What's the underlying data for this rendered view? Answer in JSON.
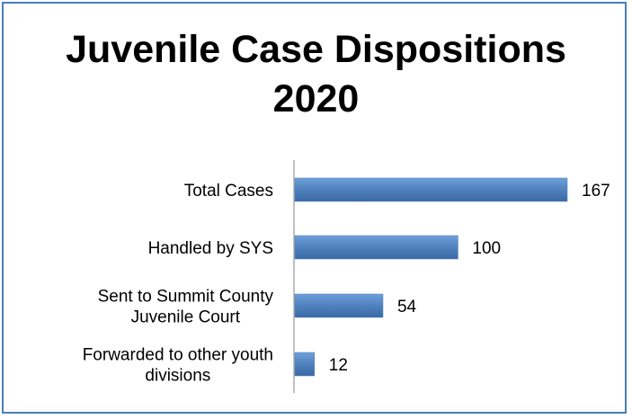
{
  "chart_data": {
    "type": "bar",
    "orientation": "horizontal",
    "title": [
      "Juvenile Case Dispositions",
      "2020"
    ],
    "categories": [
      [
        "Total Cases"
      ],
      [
        "Handled by SYS"
      ],
      [
        "Sent to Summit County",
        "Juvenile Court"
      ],
      [
        "Forwarded to other youth",
        "divisions"
      ]
    ],
    "values": [
      167,
      100,
      54,
      12
    ],
    "data_labels": [
      "167",
      "100",
      "54",
      "12"
    ],
    "xlim": [
      0,
      170
    ],
    "grid": false,
    "legend": "none",
    "bar_color": "#4f81bd",
    "border_color": "#4a7ebb"
  }
}
